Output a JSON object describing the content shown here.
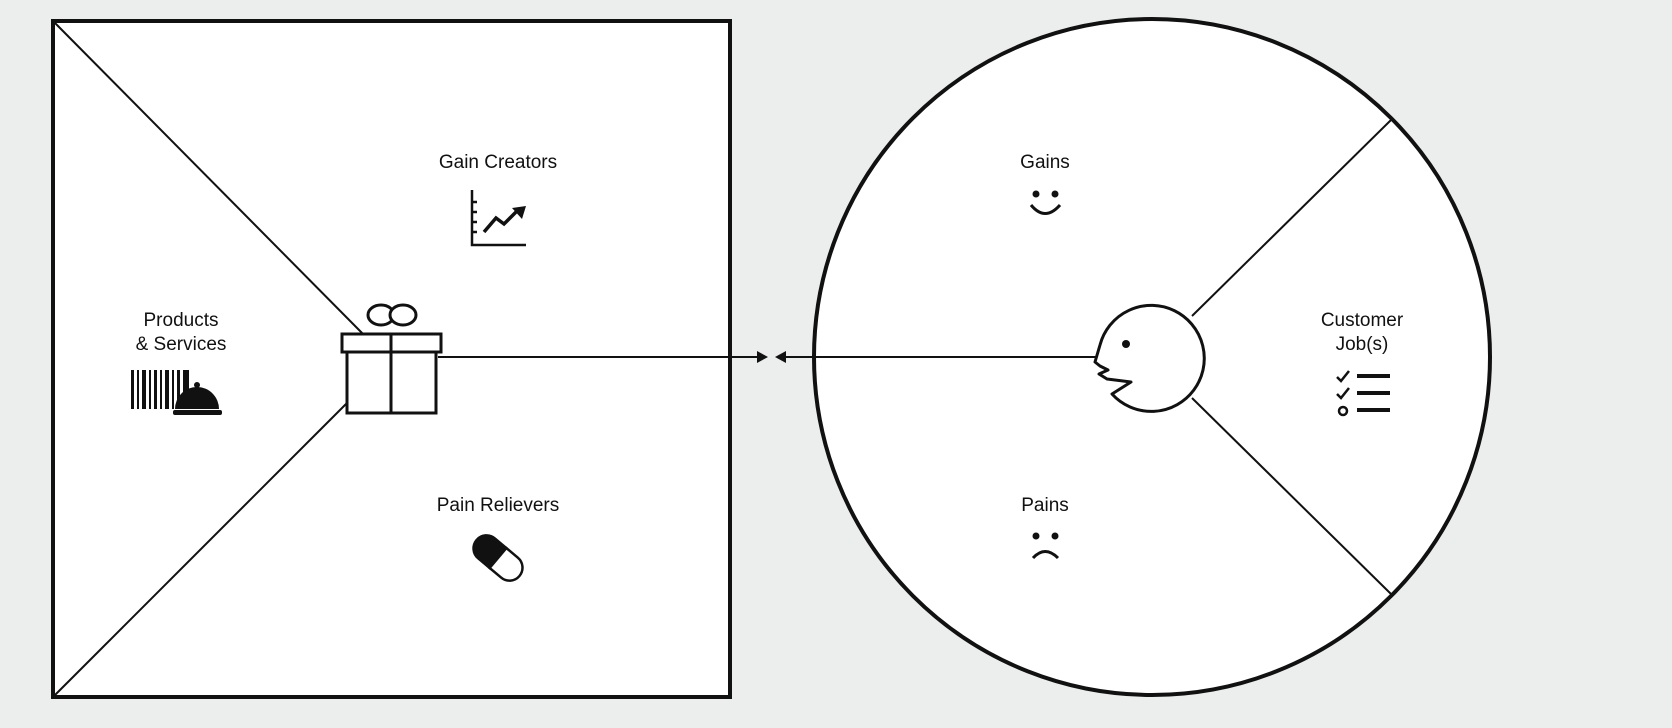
{
  "value_map": {
    "sections": {
      "gain_creators": "Gain Creators",
      "products_services_line1": "Products",
      "products_services_line2": "& Services",
      "pain_relievers": "Pain Relievers"
    },
    "icons": {
      "gain_creators": "chart-up-icon",
      "products_services": "barcode-bell-icon",
      "pain_relievers": "pill-icon",
      "center": "gift-icon"
    }
  },
  "customer_profile": {
    "sections": {
      "gains": "Gains",
      "pains": "Pains",
      "customer_jobs_line1": "Customer",
      "customer_jobs_line2": "Job(s)"
    },
    "icons": {
      "gains": "smiley-icon",
      "pains": "sad-face-icon",
      "customer_jobs": "checklist-icon",
      "center": "customer-face-icon"
    }
  },
  "colors": {
    "background": "#eceeed",
    "shape_fill": "#ffffff",
    "stroke": "#111111"
  }
}
